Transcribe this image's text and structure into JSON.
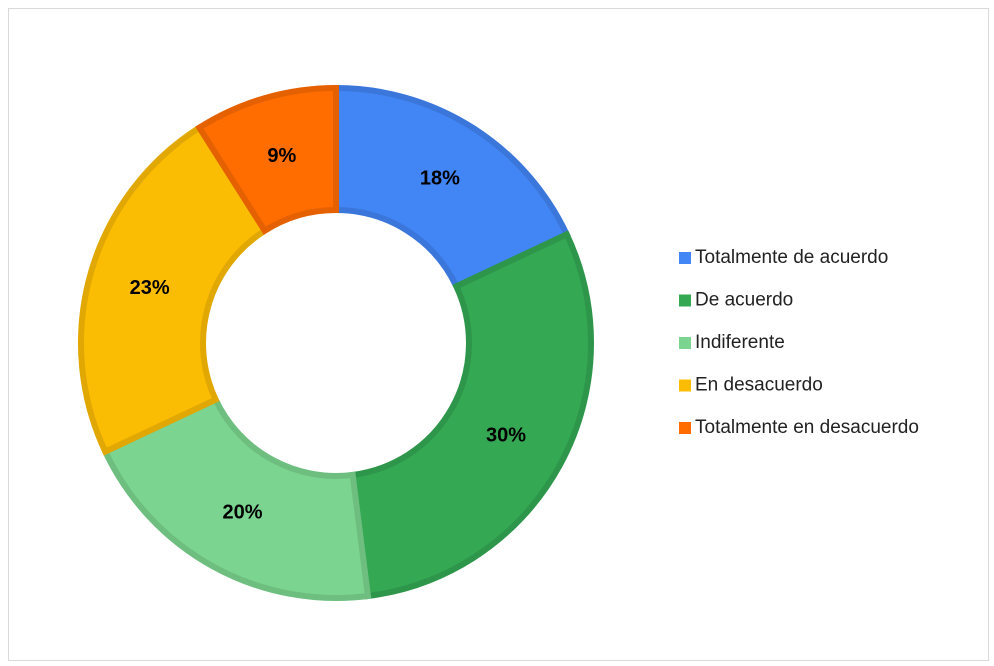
{
  "chart_data": {
    "type": "donut",
    "categories": [
      "Totalmente de acuerdo",
      "De acuerdo",
      "Indiferente",
      "En desacuerdo",
      "Totalmente en desacuerdo"
    ],
    "values": [
      18,
      30,
      20,
      23,
      9
    ],
    "value_labels": [
      "18%",
      "30%",
      "20%",
      "23%",
      "9%"
    ],
    "colors": [
      "#4285f4",
      "#34a853",
      "#7bd48f",
      "#fbbc04",
      "#ff6d01"
    ]
  }
}
